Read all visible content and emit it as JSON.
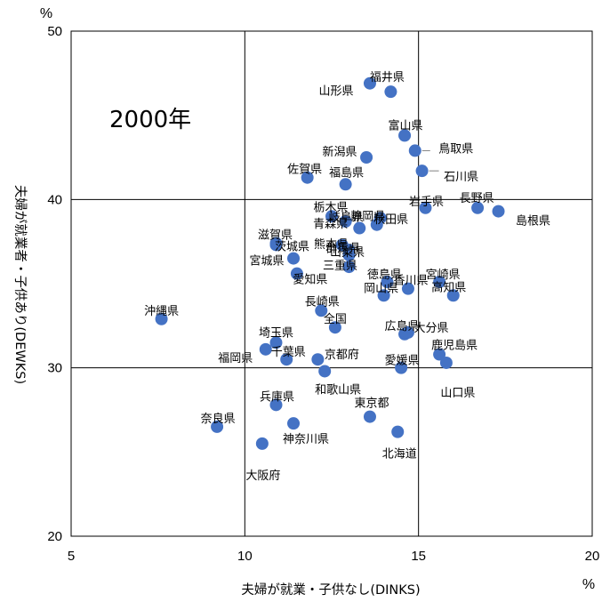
{
  "chart_data": {
    "type": "scatter",
    "annotation": "2000年",
    "xlabel": "夫婦が就業・子供なし(DINKS)",
    "ylabel": "夫婦が就業者・子供あり(DEWKS)",
    "x_unit": "%",
    "y_unit": "%",
    "xlim": [
      5,
      20
    ],
    "ylim": [
      20,
      50
    ],
    "x_ticks": [
      "5",
      "10",
      "15",
      "20"
    ],
    "y_ticks": [
      "20",
      "30",
      "40",
      "50"
    ],
    "grid": true,
    "marker_color": "#4472C4",
    "points": [
      {
        "label": "北海道",
        "x": 14.4,
        "y": 26.2
      },
      {
        "label": "青森県",
        "x": 12.9,
        "y": 38.7
      },
      {
        "label": "岩手県",
        "x": 15.2,
        "y": 39.5
      },
      {
        "label": "宮城県",
        "x": 11.4,
        "y": 36.5
      },
      {
        "label": "秋田県",
        "x": 13.9,
        "y": 38.9
      },
      {
        "label": "山形県",
        "x": 13.6,
        "y": 46.9
      },
      {
        "label": "福島県",
        "x": 12.9,
        "y": 40.9
      },
      {
        "label": "茨城県",
        "x": 10.9,
        "y": 37.3
      },
      {
        "label": "栃木県",
        "x": 12.5,
        "y": 39.0
      },
      {
        "label": "群馬県",
        "x": 12.8,
        "y": 37.3
      },
      {
        "label": "埼玉県",
        "x": 10.9,
        "y": 31.5
      },
      {
        "label": "千葉県",
        "x": 11.2,
        "y": 30.5
      },
      {
        "label": "東京都",
        "x": 13.6,
        "y": 27.1
      },
      {
        "label": "神奈川県",
        "x": 11.4,
        "y": 26.7
      },
      {
        "label": "新潟県",
        "x": 13.5,
        "y": 42.5
      },
      {
        "label": "富山県",
        "x": 14.6,
        "y": 43.8
      },
      {
        "label": "石川県",
        "x": 15.1,
        "y": 41.7
      },
      {
        "label": "福井県",
        "x": 14.2,
        "y": 46.4
      },
      {
        "label": "山梨県",
        "x": 13.0,
        "y": 37.0
      },
      {
        "label": "長野県",
        "x": 16.7,
        "y": 39.5
      },
      {
        "label": "岐阜県",
        "x": 13.3,
        "y": 38.3
      },
      {
        "label": "静岡県",
        "x": 13.8,
        "y": 38.5
      },
      {
        "label": "愛知県",
        "x": 11.5,
        "y": 35.6
      },
      {
        "label": "三重県",
        "x": 13.0,
        "y": 36.0
      },
      {
        "label": "滋賀県",
        "x": 10.9,
        "y": 37.4
      },
      {
        "label": "京都府",
        "x": 12.1,
        "y": 30.5
      },
      {
        "label": "大阪府",
        "x": 10.5,
        "y": 25.5
      },
      {
        "label": "兵庫県",
        "x": 10.9,
        "y": 27.8
      },
      {
        "label": "奈良県",
        "x": 9.2,
        "y": 26.5
      },
      {
        "label": "和歌山県",
        "x": 12.3,
        "y": 29.8
      },
      {
        "label": "鳥取県",
        "x": 14.9,
        "y": 42.9
      },
      {
        "label": "島根県",
        "x": 17.3,
        "y": 39.3
      },
      {
        "label": "岡山県",
        "x": 14.0,
        "y": 34.3
      },
      {
        "label": "広島県",
        "x": 14.6,
        "y": 32.0
      },
      {
        "label": "山口県",
        "x": 15.8,
        "y": 30.3
      },
      {
        "label": "徳島県",
        "x": 14.1,
        "y": 35.1
      },
      {
        "label": "香川県",
        "x": 14.7,
        "y": 34.7
      },
      {
        "label": "愛媛県",
        "x": 14.5,
        "y": 30.0
      },
      {
        "label": "高知県",
        "x": 16.0,
        "y": 34.3
      },
      {
        "label": "福岡県",
        "x": 10.6,
        "y": 31.1
      },
      {
        "label": "佐賀県",
        "x": 11.8,
        "y": 41.3
      },
      {
        "label": "長崎県",
        "x": 12.2,
        "y": 33.4
      },
      {
        "label": "熊本県",
        "x": 13.0,
        "y": 36.7
      },
      {
        "label": "大分県",
        "x": 14.7,
        "y": 32.1
      },
      {
        "label": "宮崎県",
        "x": 15.6,
        "y": 35.1
      },
      {
        "label": "鹿児島県",
        "x": 15.6,
        "y": 30.8
      },
      {
        "label": "沖縄県",
        "x": 7.6,
        "y": 32.9
      },
      {
        "label": "全国",
        "x": 12.6,
        "y": 32.4
      }
    ]
  }
}
